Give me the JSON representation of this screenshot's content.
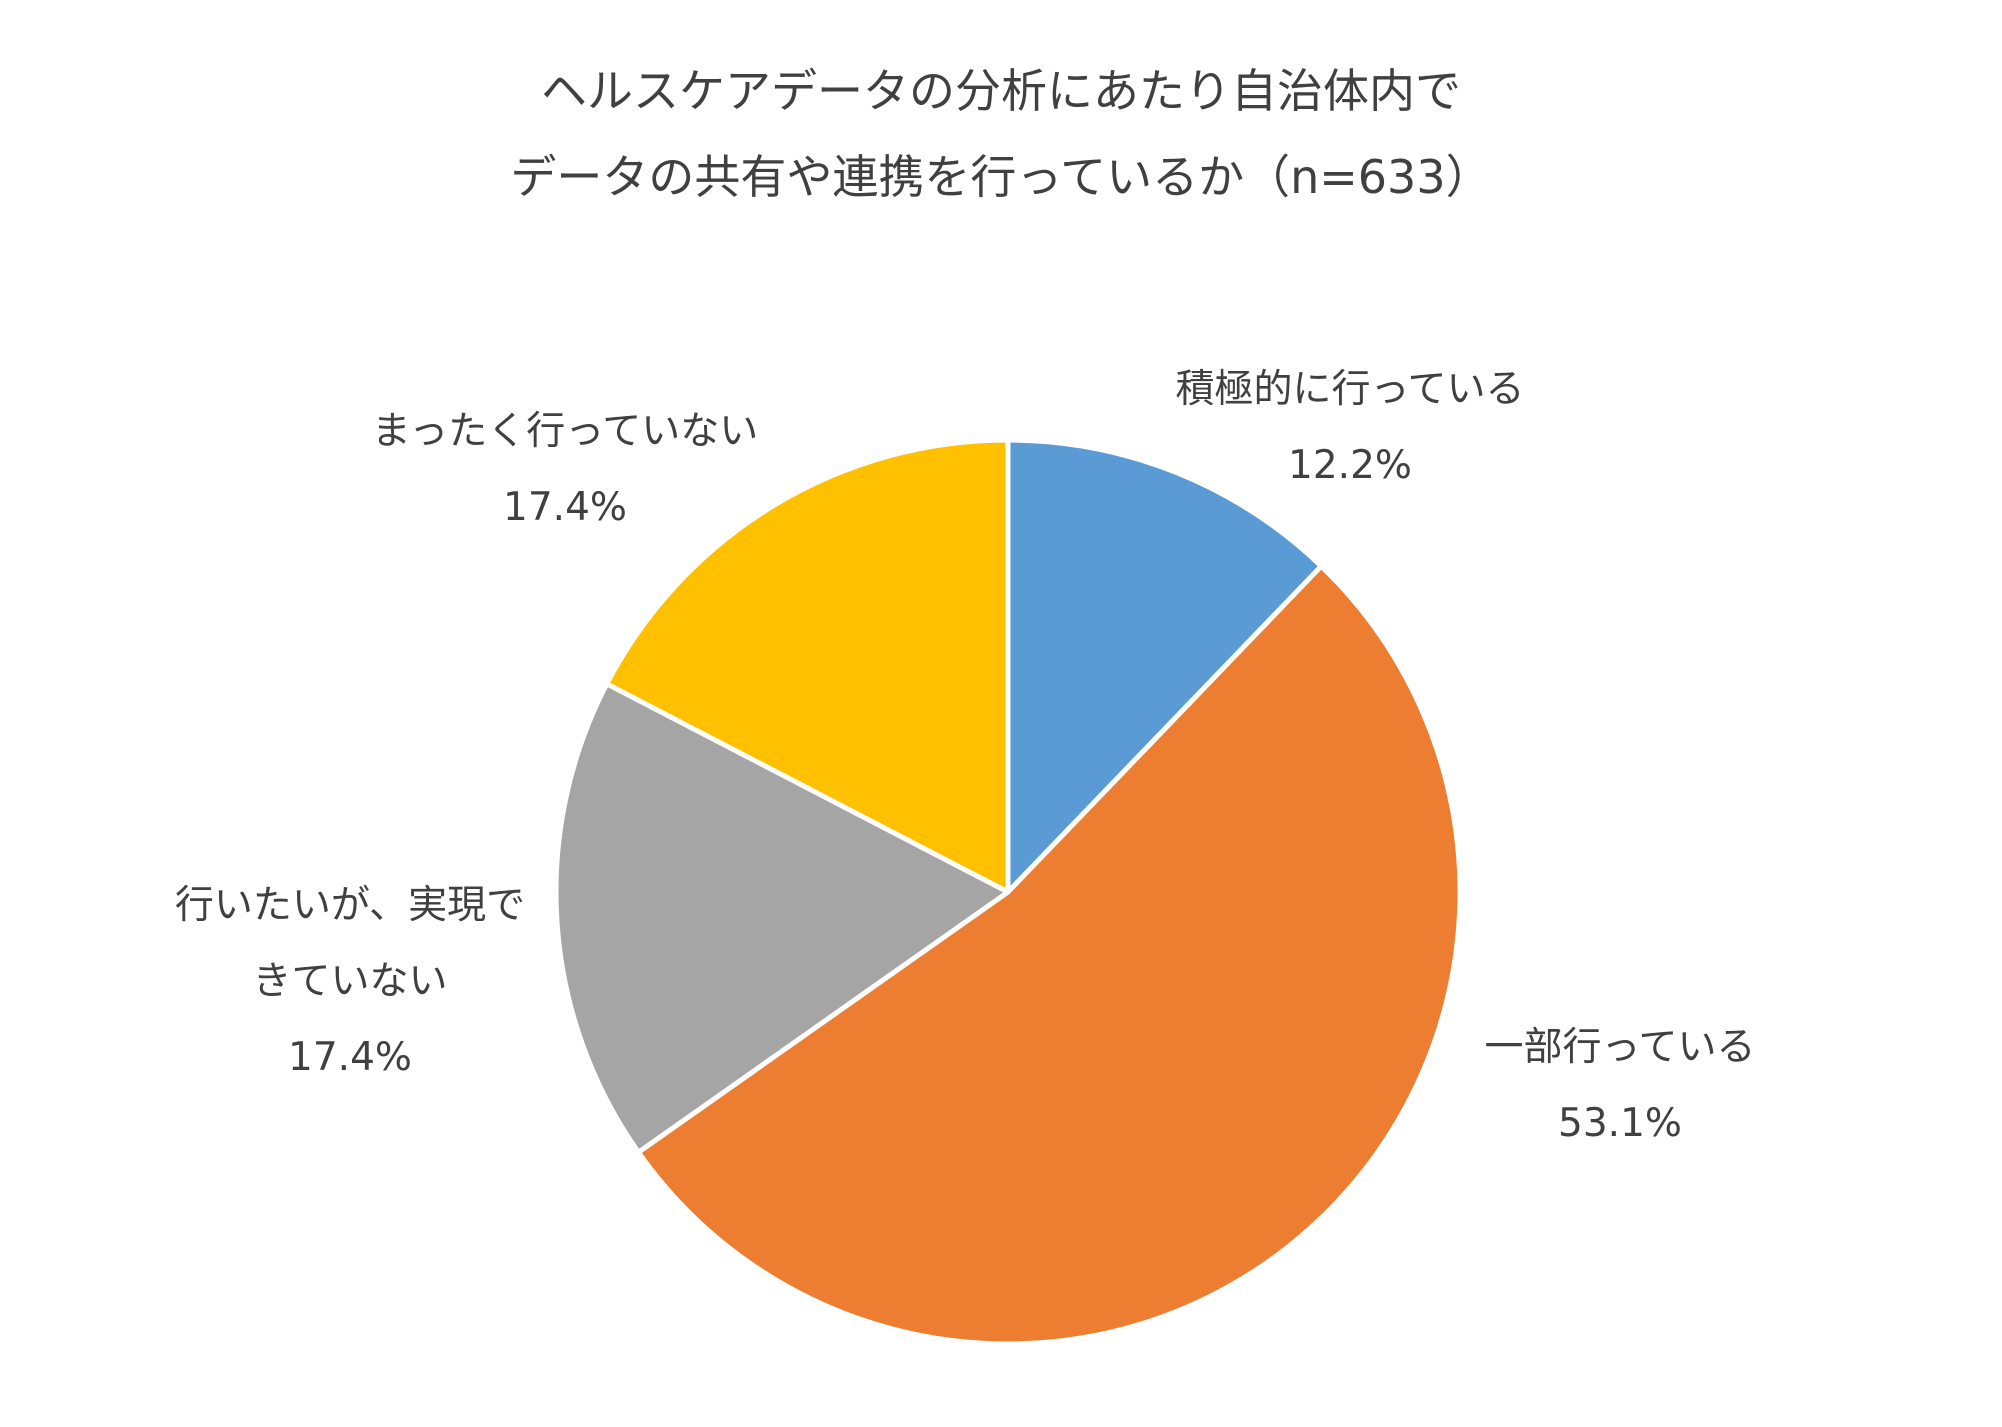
{
  "chart_data": {
    "type": "pie",
    "title_lines": [
      "ヘルスケアデータの分析にあたり自治体内で",
      "データの共有や連携を行っているか（n=633）"
    ],
    "slices": [
      {
        "label_lines": [
          "積極的に行っている"
        ],
        "value": 12.2,
        "value_label": "12.2%",
        "color": "#5B9BD5"
      },
      {
        "label_lines": [
          "一部行っている"
        ],
        "value": 53.1,
        "value_label": "53.1%",
        "color": "#ED7D31"
      },
      {
        "label_lines": [
          "行いたいが、実現で",
          "きていない"
        ],
        "value": 17.4,
        "value_label": "17.4%",
        "color": "#A5A5A5"
      },
      {
        "label_lines": [
          "まったく行っていない"
        ],
        "value": 17.4,
        "value_label": "17.4%",
        "color": "#FFC000"
      }
    ],
    "start_angle": "12 o'clock",
    "direction": "clockwise",
    "legend": "none"
  }
}
